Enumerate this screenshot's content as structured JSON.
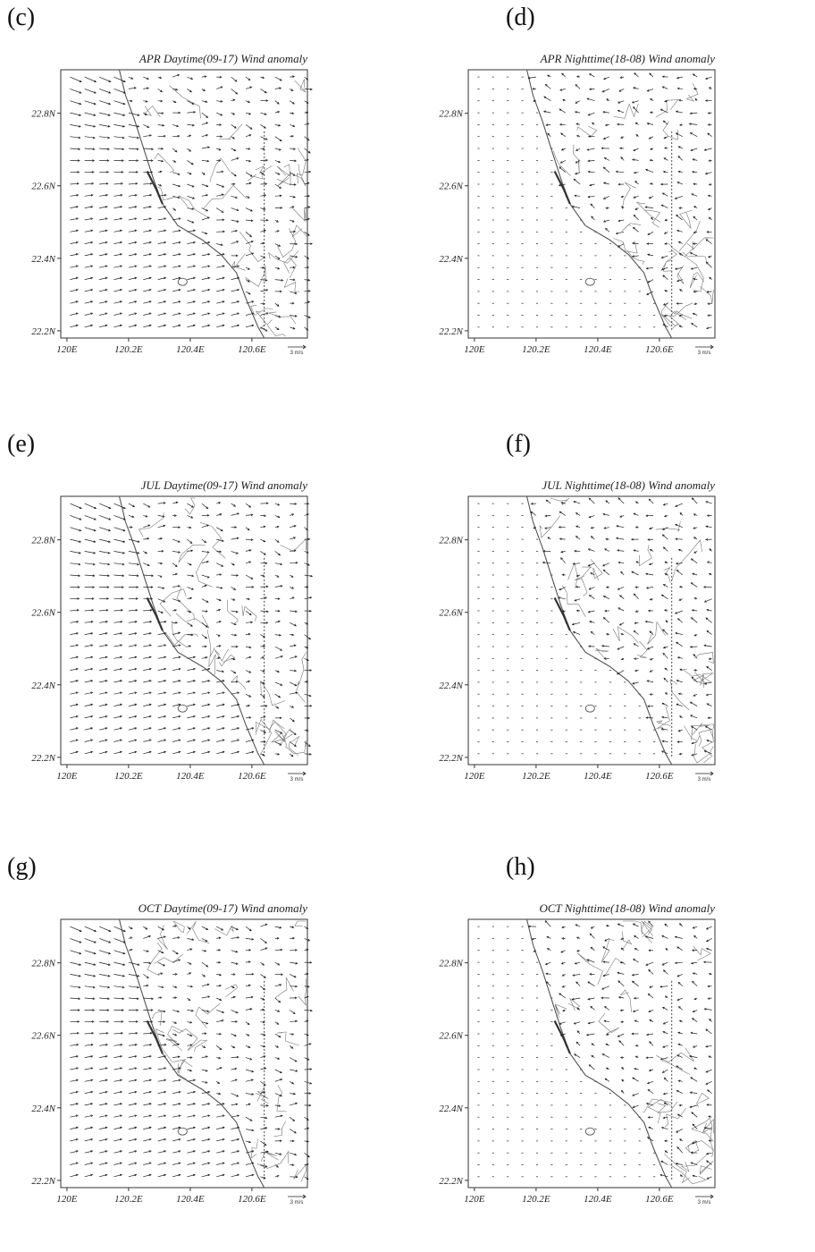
{
  "panels": [
    {
      "label": "(c)",
      "title": "APR Daytime(09-17) Wind anomaly",
      "mode": "day"
    },
    {
      "label": "(d)",
      "title": "APR Nighttime(18-08) Wind anomaly",
      "mode": "night"
    },
    {
      "label": "(e)",
      "title": "JUL Daytime(09-17) Wind anomaly",
      "mode": "day"
    },
    {
      "label": "(f)",
      "title": "JUL Nighttime(18-08) Wind anomaly",
      "mode": "night"
    },
    {
      "label": "(g)",
      "title": "OCT Daytime(09-17) Wind anomaly",
      "mode": "day"
    },
    {
      "label": "(h)",
      "title": "OCT Nighttime(18-08) Wind anomaly",
      "mode": "night"
    }
  ],
  "axes": {
    "lat_ticks": [
      "22.8N",
      "22.6N",
      "22.4N",
      "22.2N"
    ],
    "lon_ticks": [
      "120E",
      "120.2E",
      "120.4E",
      "120.6E"
    ],
    "scale_label": "3 m/s"
  },
  "extent": {
    "lon": [
      119.98,
      120.78
    ],
    "lat": [
      22.18,
      22.92
    ]
  },
  "colors": {
    "frame": "#333333",
    "arrows": "#222222",
    "coast": "#555555",
    "text": "#222222"
  }
}
